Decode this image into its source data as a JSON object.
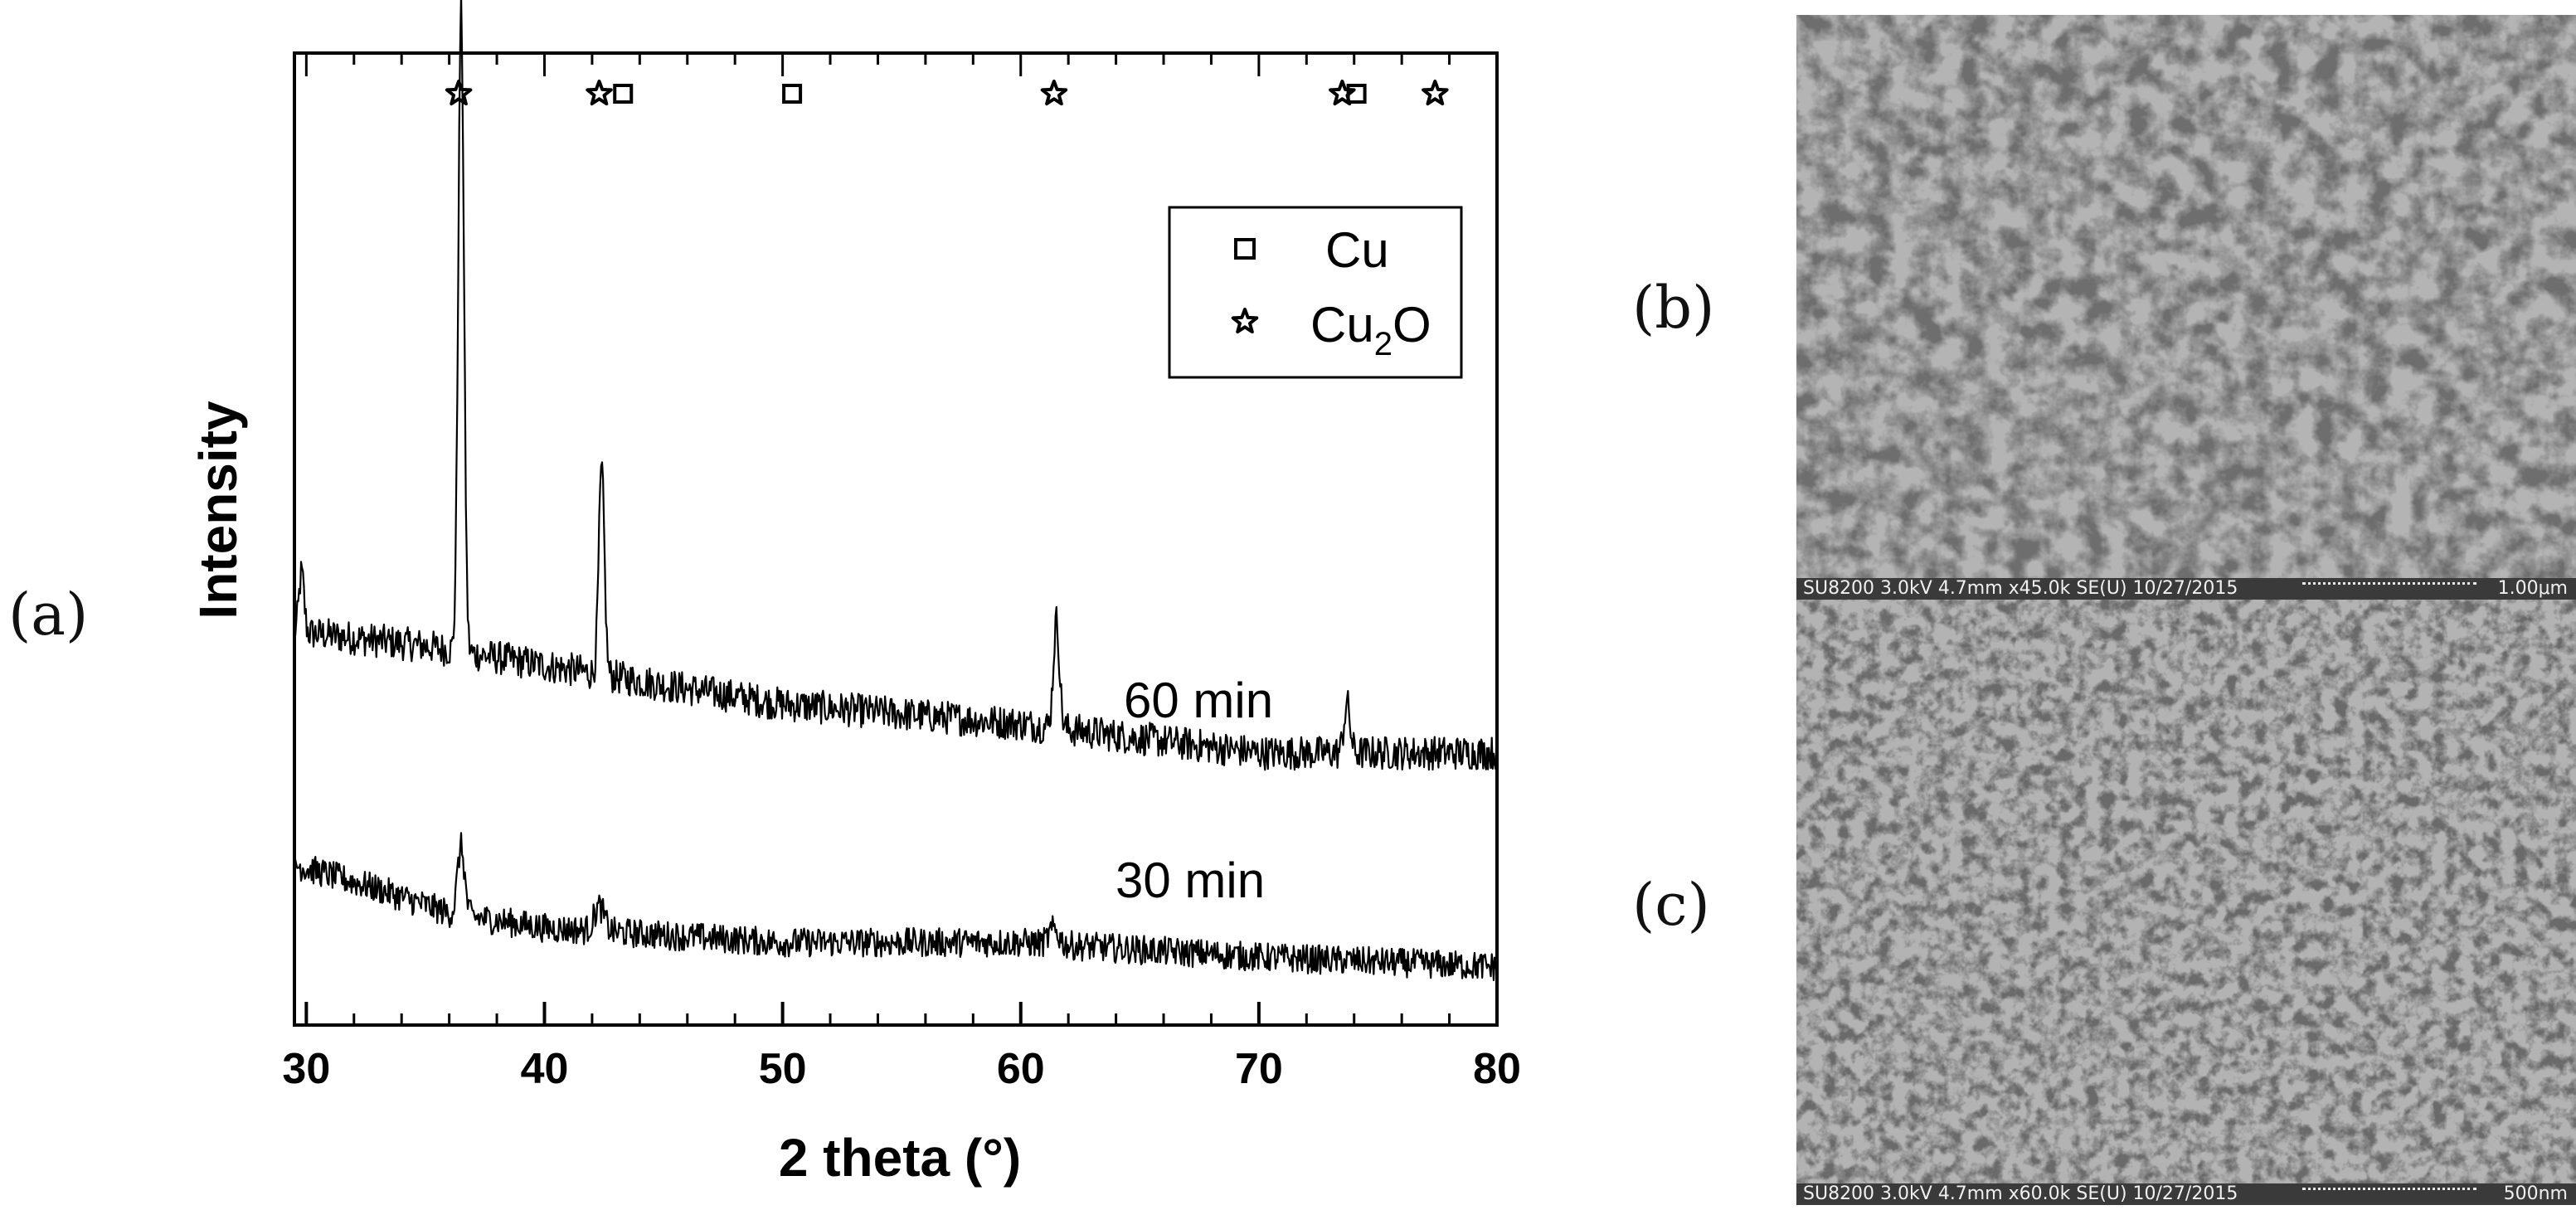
{
  "panels": {
    "a": "(a)",
    "b": "(b)",
    "c": "(c)"
  },
  "chart_data": {
    "type": "line",
    "xlabel": "2 theta (°)",
    "ylabel": "Intensity",
    "xlim": [
      29.5,
      80
    ],
    "x_ticks": [
      30,
      40,
      50,
      60,
      70,
      80
    ],
    "y_ticks_shown": false,
    "legend": {
      "placement": "top-right",
      "entries": [
        {
          "marker": "square",
          "label": "Cu"
        },
        {
          "marker": "star",
          "label": "Cu",
          "subscript": "2",
          "suffix": "O"
        }
      ]
    },
    "reference_markers": {
      "Cu": [
        43.3,
        50.4,
        74.1
      ],
      "Cu2O": [
        36.4,
        42.3,
        61.4,
        73.5,
        77.4
      ]
    },
    "series": [
      {
        "name": "60 min",
        "baseline": [
          [
            29.5,
            0.405
          ],
          [
            35,
            0.39
          ],
          [
            40,
            0.37
          ],
          [
            50,
            0.33
          ],
          [
            60,
            0.31
          ],
          [
            70,
            0.28
          ],
          [
            80,
            0.28
          ]
        ],
        "peaks": [
          {
            "x": 29.8,
            "height": 0.06,
            "width": 0.25
          },
          {
            "x": 36.5,
            "height": 0.66,
            "width": 0.28
          },
          {
            "x": 42.4,
            "height": 0.21,
            "width": 0.28
          },
          {
            "x": 61.5,
            "height": 0.11,
            "width": 0.3
          },
          {
            "x": 73.7,
            "height": 0.05,
            "width": 0.3
          }
        ],
        "noise": 0.035
      },
      {
        "name": "30 min",
        "baseline": [
          [
            29.5,
            0.165
          ],
          [
            33,
            0.14
          ],
          [
            36,
            0.115
          ],
          [
            40,
            0.1
          ],
          [
            50,
            0.085
          ],
          [
            60,
            0.085
          ],
          [
            70,
            0.07
          ],
          [
            80,
            0.06
          ]
        ],
        "peaks": [
          {
            "x": 36.5,
            "height": 0.07,
            "width": 0.35
          },
          {
            "x": 42.3,
            "height": 0.025,
            "width": 0.5
          },
          {
            "x": 61.4,
            "height": 0.015,
            "width": 0.5
          }
        ],
        "noise": 0.03
      }
    ]
  },
  "sem_images": [
    {
      "id": "b",
      "info": "SU8200 3.0kV 4.7mm x45.0k SE(U) 10/27/2015",
      "scale": "1.00μm"
    },
    {
      "id": "c",
      "info": "SU8200 3.0kV 4.7mm x60.0k SE(U) 10/27/2015",
      "scale": "500nm"
    }
  ]
}
